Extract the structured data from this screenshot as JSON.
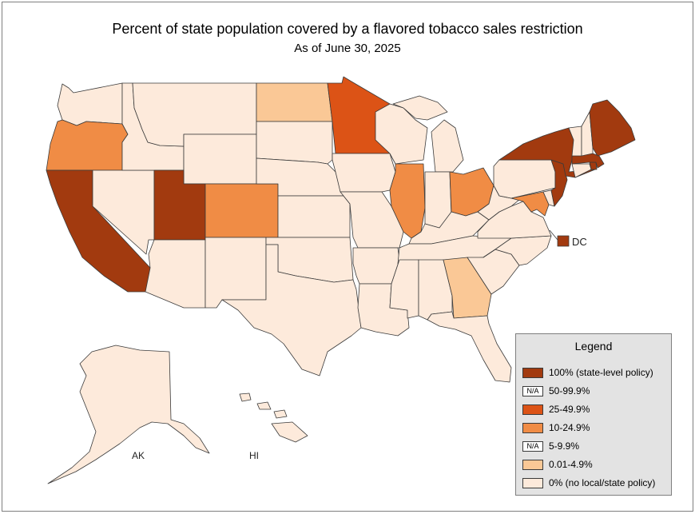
{
  "title": "Percent of state population covered by a flavored tobacco sales restriction",
  "subtitle": "As of June 30, 2025",
  "colors": {
    "c100": "#a23a0f",
    "c25": "#dc5316",
    "c10": "#f08c45",
    "c001": "#fac896",
    "c0": "#fdeadb",
    "outline": "#3a3a3a"
  },
  "legend": {
    "title": "Legend",
    "items": [
      {
        "label": "100% (state-level policy)",
        "color_key": "c100",
        "na": ""
      },
      {
        "label": "50-99.9%",
        "color_key": "",
        "na": "N/A"
      },
      {
        "label": "25-49.9%",
        "color_key": "c25",
        "na": ""
      },
      {
        "label": "10-24.9%",
        "color_key": "c10",
        "na": ""
      },
      {
        "label": "5-9.9%",
        "color_key": "",
        "na": "N/A"
      },
      {
        "label": "0.01-4.9%",
        "color_key": "c001",
        "na": ""
      },
      {
        "label": "0% (no local/state policy)",
        "color_key": "c0",
        "na": ""
      }
    ]
  },
  "labels": {
    "dc": "DC",
    "ak": "AK",
    "hi": "HI"
  },
  "states": {
    "WA": "c0",
    "OR": "c10",
    "CA": "c100",
    "NV": "c0",
    "ID": "c0",
    "MT": "c0",
    "WY": "c0",
    "UT": "c100",
    "CO": "c10",
    "AZ": "c0",
    "NM": "c0",
    "ND": "c001",
    "SD": "c0",
    "NE": "c0",
    "KS": "c0",
    "OK": "c0",
    "TX": "c0",
    "MN": "c25",
    "IA": "c0",
    "MO": "c0",
    "AR": "c0",
    "LA": "c0",
    "WI": "c0",
    "IL": "c10",
    "MI": "c0",
    "IN": "c0",
    "OH": "c10",
    "KY": "c0",
    "TN": "c0",
    "MS": "c0",
    "AL": "c0",
    "GA": "c001",
    "FL": "c0",
    "SC": "c0",
    "NC": "c0",
    "VA": "c0",
    "WV": "c0",
    "PA": "c0",
    "NY": "c100",
    "VT": "c0",
    "NH": "c0",
    "ME": "c100",
    "MA": "c100",
    "RI": "c100",
    "CT": "c0",
    "NJ": "c100",
    "DE": "c0",
    "MD": "c10",
    "DC": "c100",
    "AK": "c0",
    "HI": "c0"
  }
}
